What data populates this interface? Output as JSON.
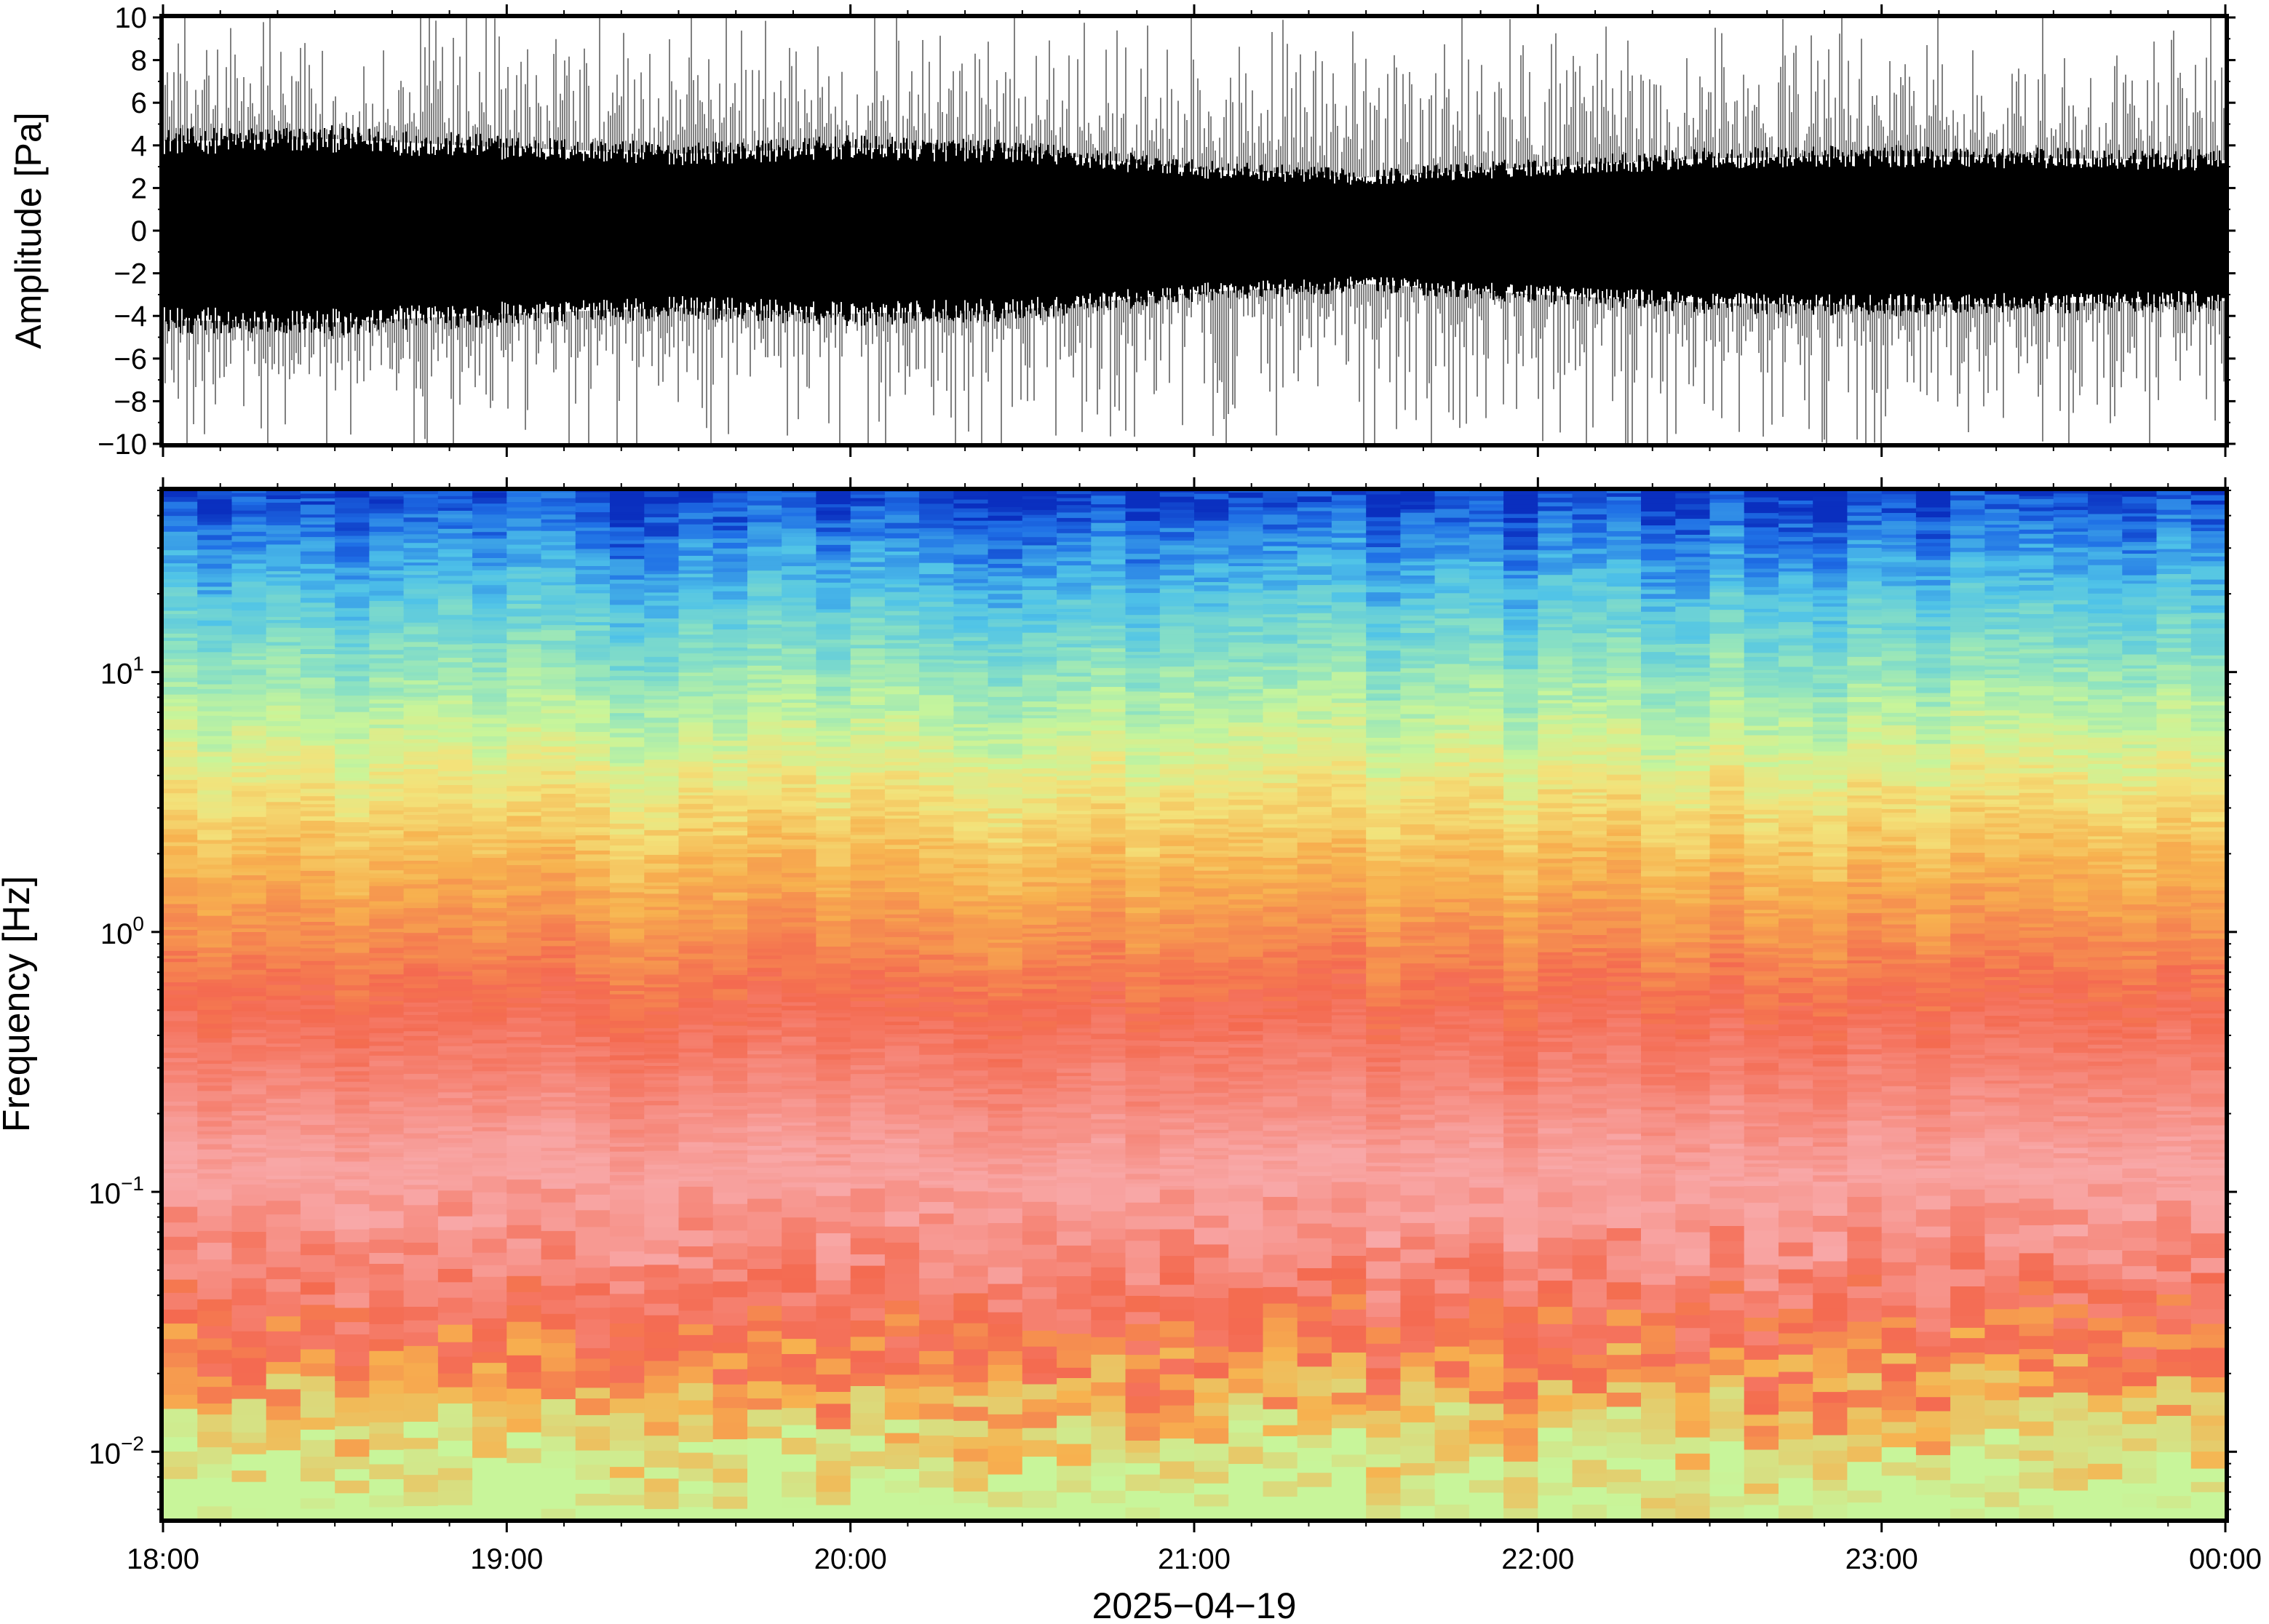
{
  "chart_data": [
    {
      "type": "line",
      "description_free": true,
      "ylabel": "Amplitude [Pa]",
      "ylim": [
        -10,
        10
      ],
      "yticks": [
        10,
        8,
        6,
        4,
        2,
        0,
        -2,
        -4,
        -6,
        -8,
        -10
      ],
      "ytick_labels": [
        "10",
        "8",
        "6",
        "4",
        "2",
        "0",
        "−2",
        "−4",
        "−6",
        "−8",
        "−10"
      ],
      "xlim": [
        "18:00",
        "00:00"
      ],
      "series_color": "#000000",
      "envelope_hours": [
        18.0,
        18.5,
        19.0,
        19.5,
        20.0,
        20.5,
        21.0,
        21.5,
        22.0,
        22.5,
        23.0,
        23.5,
        24.0
      ],
      "envelope_pa": [
        4.2,
        4.3,
        3.9,
        3.6,
        3.9,
        3.7,
        2.9,
        2.5,
        3.0,
        3.4,
        3.5,
        3.4,
        3.3
      ]
    },
    {
      "type": "heatmap",
      "ylabel": "Frequency [Hz]",
      "xlabel": "2025−04−19",
      "y_scale": "log",
      "ylim_hz": [
        0.0055,
        50
      ],
      "yticks_hz": [
        0.01,
        0.1,
        1,
        10
      ],
      "ytick_base": "10",
      "ytick_exponents": [
        "−2",
        "−1",
        "0",
        "1"
      ],
      "xticks": [
        "18:00",
        "19:00",
        "20:00",
        "21:00",
        "22:00",
        "23:00",
        "00:00"
      ],
      "xlim": [
        "18:00",
        "00:00"
      ],
      "colorscale": [
        "#0a2fbf",
        "#1f6fe6",
        "#4fc3e8",
        "#8fe3c0",
        "#c8f59a",
        "#f3e27a",
        "#f7b24f",
        "#f46a50",
        "#f8a8a8"
      ],
      "color_levels_by_log10_frequency": [
        {
          "log10_hz": 1.7,
          "color": "#0a2fbf"
        },
        {
          "log10_hz": 1.55,
          "color": "#1f6fe6"
        },
        {
          "log10_hz": 1.3,
          "color": "#4fc3e8"
        },
        {
          "log10_hz": 1.0,
          "color": "#8fe3c0"
        },
        {
          "log10_hz": 0.75,
          "color": "#c8f59a"
        },
        {
          "log10_hz": 0.5,
          "color": "#f3e27a"
        },
        {
          "log10_hz": 0.2,
          "color": "#f7b24f"
        },
        {
          "log10_hz": -0.3,
          "color": "#f46a50"
        },
        {
          "log10_hz": -1.0,
          "color": "#f8a8a8"
        },
        {
          "log10_hz": -1.6,
          "color": "#f46a50"
        },
        {
          "log10_hz": -1.85,
          "color": "#f7b24f"
        },
        {
          "log10_hz": -2.2,
          "color": "#c8f59a"
        }
      ]
    }
  ]
}
